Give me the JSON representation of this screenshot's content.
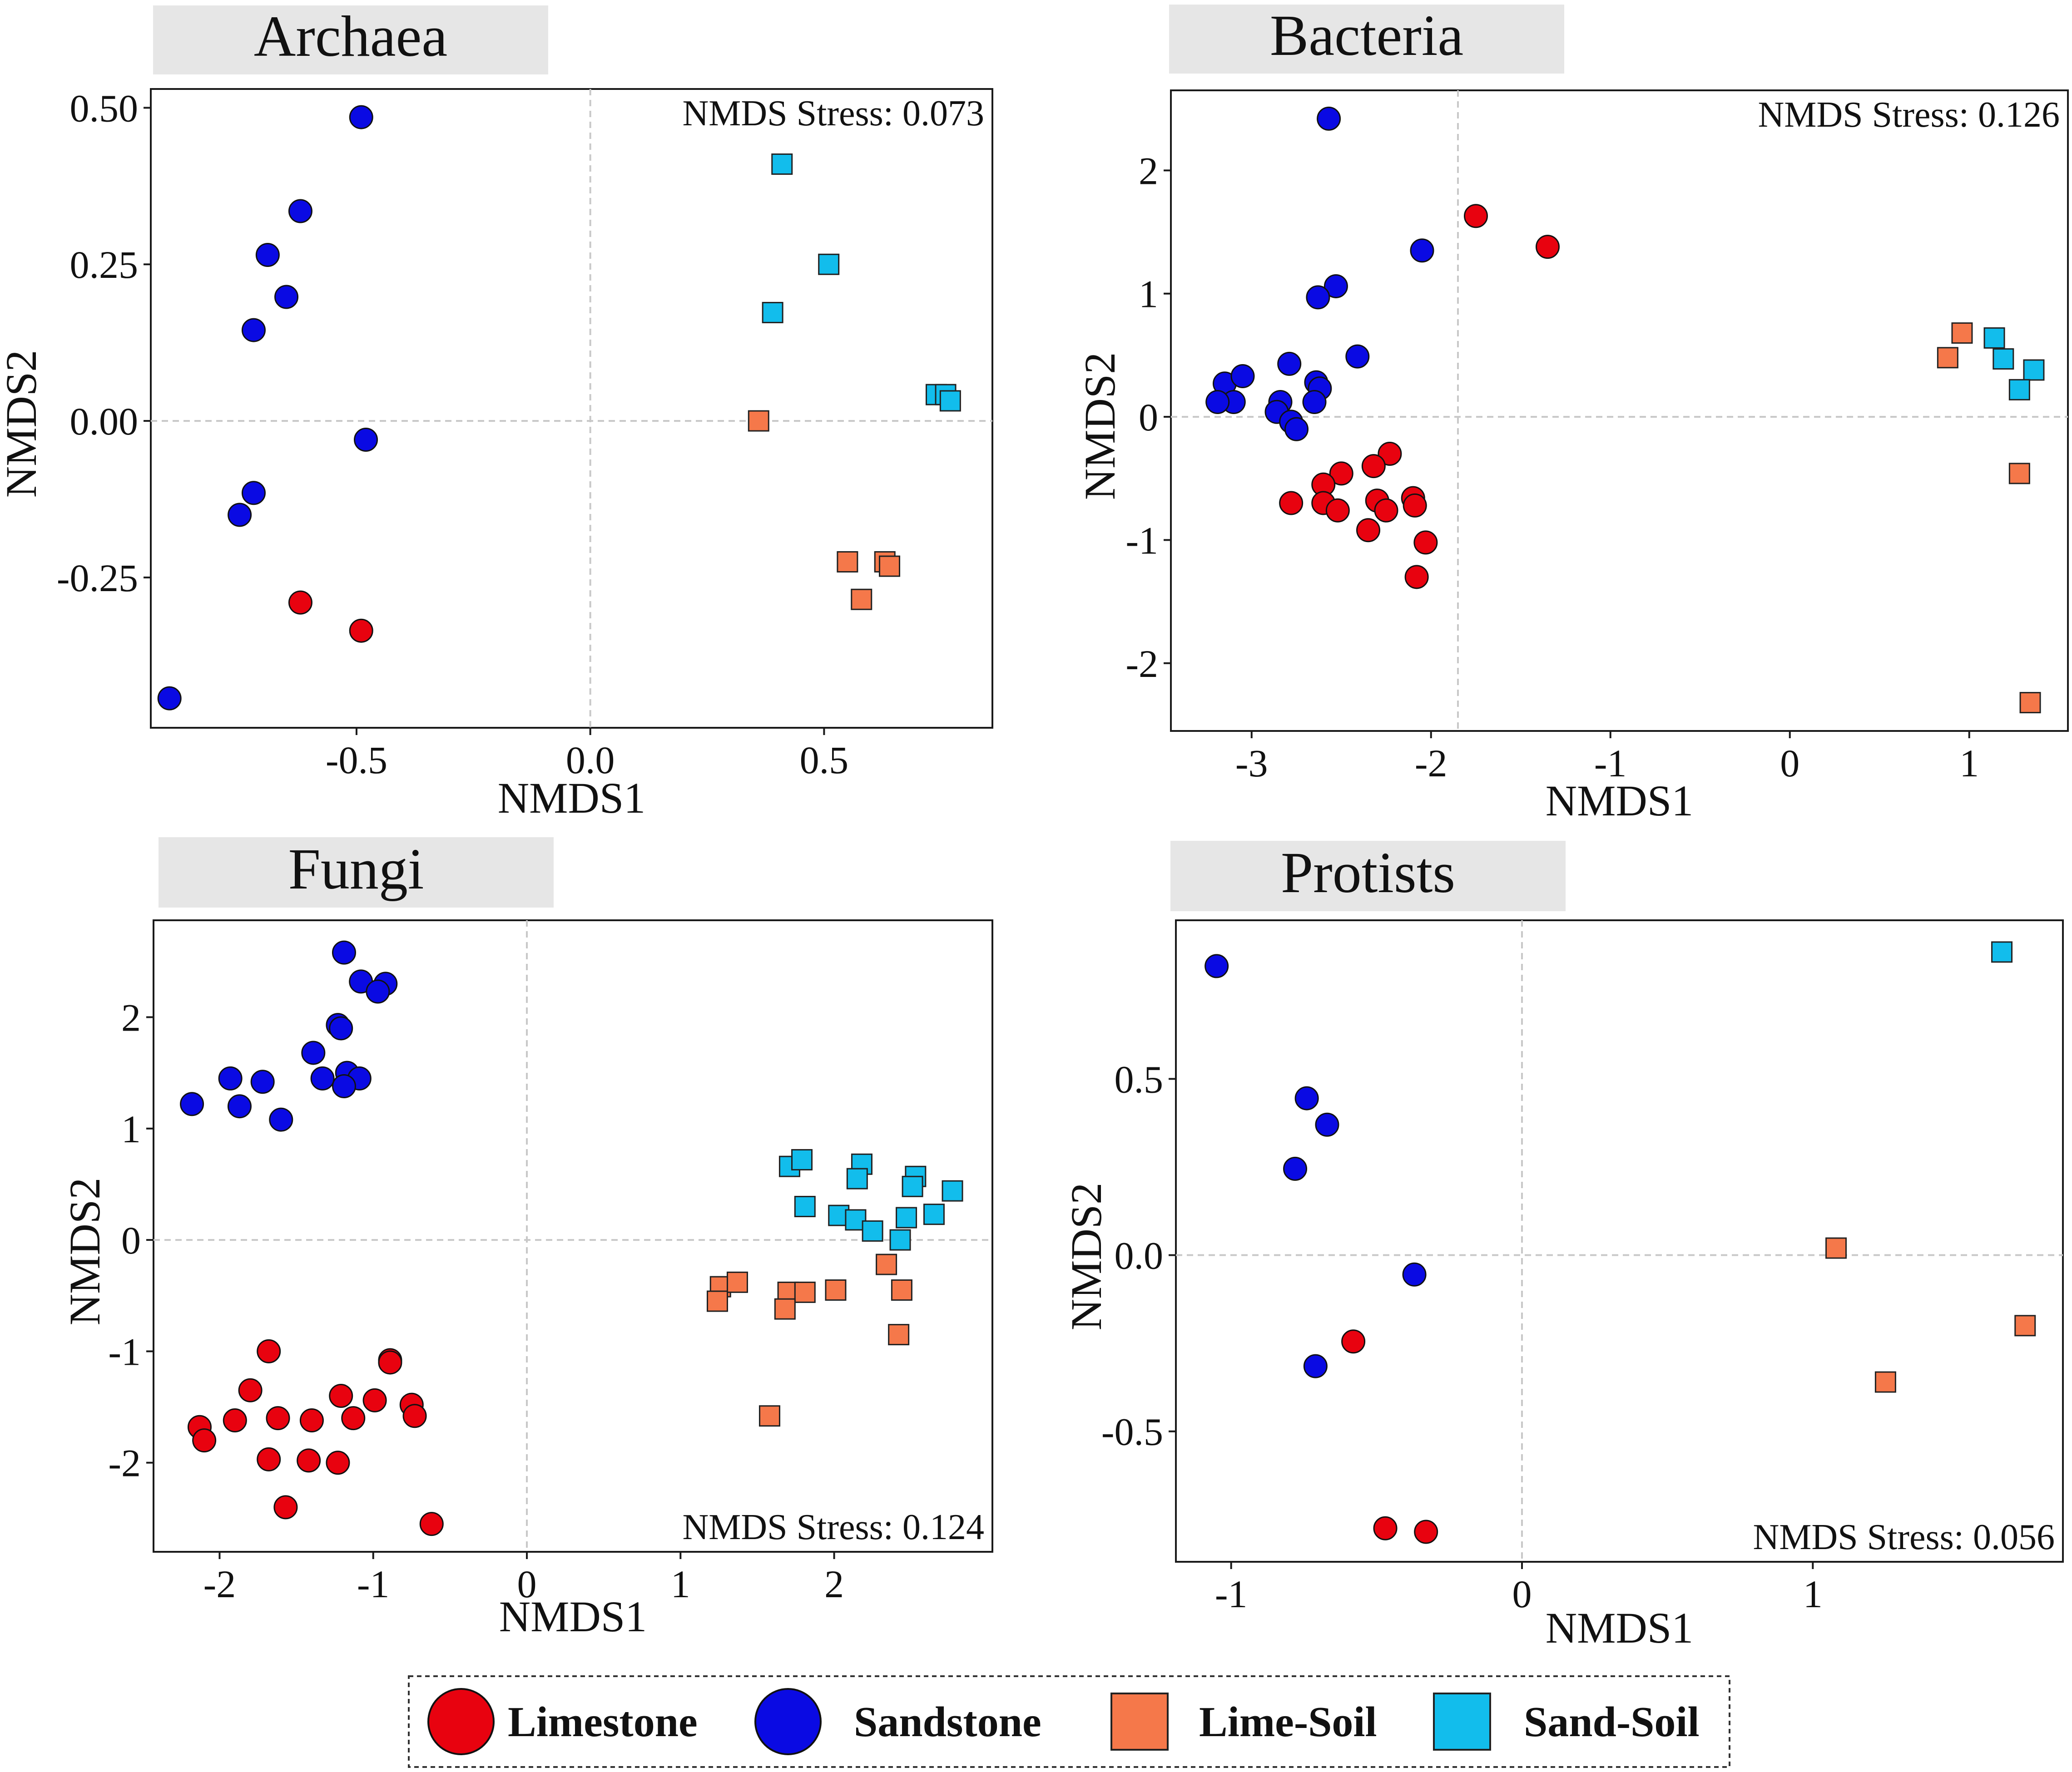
{
  "colors": {
    "Limestone": "#e8020f",
    "Sandstone": "#0a0ae3",
    "Lime-Soil": "#f5784a",
    "Sand-Soil": "#12bdec",
    "title_bg": "#e6e6e6",
    "grid": "#c8c8c8"
  },
  "legend": {
    "items": [
      {
        "label": "Limestone",
        "shape": "circle"
      },
      {
        "label": "Sandstone",
        "shape": "circle"
      },
      {
        "label": "Lime-Soil",
        "shape": "square"
      },
      {
        "label": "Sand-Soil",
        "shape": "square"
      }
    ]
  },
  "chart_data": [
    {
      "type": "scatter",
      "title": "Archaea",
      "xlabel": "NMDS1",
      "ylabel": "NMDS2",
      "stress_label": "NMDS Stress: 0.073",
      "xlim": [
        -0.94,
        0.86
      ],
      "ylim": [
        -0.49,
        0.53
      ],
      "xticks": [
        -0.5,
        0.0,
        0.5
      ],
      "xtick_labels": [
        "-0.5",
        "0.0",
        "0.5"
      ],
      "yticks": [
        -0.25,
        0.0,
        0.25,
        0.5
      ],
      "ytick_labels": [
        "-0.25",
        "0.00",
        "0.25",
        "0.50"
      ],
      "refline_x": 0,
      "refline_y": 0,
      "series": [
        {
          "name": "Limestone",
          "x": [
            -0.62,
            -0.49
          ],
          "y": [
            -0.29,
            -0.335
          ]
        },
        {
          "name": "Sandstone",
          "x": [
            -0.49,
            -0.62,
            -0.69,
            -0.65,
            -0.72,
            -0.48,
            -0.72,
            -0.75,
            -0.9
          ],
          "y": [
            0.485,
            0.335,
            0.265,
            0.198,
            0.145,
            -0.03,
            -0.115,
            -0.15,
            -0.443
          ]
        },
        {
          "name": "Lime-Soil",
          "x": [
            0.36,
            0.55,
            0.63,
            0.64,
            0.58
          ],
          "y": [
            0.0,
            -0.225,
            -0.225,
            -0.232,
            -0.285
          ]
        },
        {
          "name": "Sand-Soil",
          "x": [
            0.41,
            0.51,
            0.39,
            0.74,
            0.76,
            0.77
          ],
          "y": [
            0.41,
            0.25,
            0.173,
            0.042,
            0.042,
            0.032
          ]
        }
      ]
    },
    {
      "type": "scatter",
      "title": "Bacteria",
      "xlabel": "NMDS1",
      "ylabel": "NMDS2",
      "stress_label": "NMDS Stress: 0.126",
      "xlim": [
        -3.45,
        1.55
      ],
      "ylim": [
        -2.55,
        2.65
      ],
      "xticks": [
        -3,
        -2,
        -1,
        0,
        1
      ],
      "xtick_labels": [
        "-3",
        "-2",
        "-1",
        "0",
        "1"
      ],
      "yticks": [
        -2,
        -1,
        0,
        1,
        2
      ],
      "ytick_labels": [
        "-2",
        "-1",
        "0",
        "1",
        "2"
      ],
      "refline_x": -1.85,
      "refline_y": 0,
      "series": [
        {
          "name": "Limestone",
          "x": [
            -1.75,
            -1.35,
            -2.23,
            -2.32,
            -2.5,
            -2.6,
            -2.78,
            -2.6,
            -2.52,
            -2.3,
            -2.25,
            -2.1,
            -2.09,
            -2.35,
            -2.03,
            -2.08
          ],
          "y": [
            1.63,
            1.38,
            -0.3,
            -0.4,
            -0.46,
            -0.55,
            -0.7,
            -0.7,
            -0.76,
            -0.68,
            -0.76,
            -0.66,
            -0.72,
            -0.92,
            -1.02,
            -1.3
          ]
        },
        {
          "name": "Sandstone",
          "x": [
            -2.57,
            -2.05,
            -2.53,
            -2.63,
            -3.15,
            -3.05,
            -3.1,
            -3.19,
            -2.79,
            -2.64,
            -2.62,
            -2.84,
            -2.86,
            -2.41,
            -2.65,
            -2.78,
            -2.75
          ],
          "y": [
            2.42,
            1.35,
            1.06,
            0.97,
            0.27,
            0.33,
            0.12,
            0.12,
            0.43,
            0.28,
            0.23,
            0.12,
            0.04,
            0.49,
            0.12,
            -0.04,
            -0.1
          ]
        },
        {
          "name": "Lime-Soil",
          "x": [
            0.96,
            0.88,
            1.28,
            1.34
          ],
          "y": [
            0.68,
            0.48,
            -0.46,
            -2.32
          ]
        },
        {
          "name": "Sand-Soil",
          "x": [
            1.14,
            1.19,
            1.36,
            1.28
          ],
          "y": [
            0.64,
            0.47,
            0.38,
            0.22
          ]
        }
      ]
    },
    {
      "type": "scatter",
      "title": "Fungi",
      "xlabel": "NMDS1",
      "ylabel": "NMDS2",
      "stress_label": "NMDS Stress: 0.124",
      "xlim": [
        -2.43,
        3.03
      ],
      "ylim": [
        -2.8,
        2.87
      ],
      "xticks": [
        -2,
        -1,
        0,
        1,
        2
      ],
      "xtick_labels": [
        "-2",
        "-1",
        "0",
        "1",
        "2"
      ],
      "yticks": [
        -2,
        -1,
        0,
        1,
        2
      ],
      "ytick_labels": [
        "-2",
        "-1",
        "0",
        "1",
        "2"
      ],
      "refline_x": 0,
      "refline_y": 0,
      "series": [
        {
          "name": "Limestone",
          "x": [
            -1.68,
            -0.89,
            -0.89,
            -1.8,
            -1.21,
            -0.99,
            -2.13,
            -2.1,
            -1.9,
            -1.62,
            -1.4,
            -1.13,
            -0.75,
            -0.73,
            -1.68,
            -1.42,
            -1.23,
            -1.57,
            -0.62
          ],
          "y": [
            -1.0,
            -1.08,
            -1.1,
            -1.35,
            -1.4,
            -1.44,
            -1.68,
            -1.8,
            -1.62,
            -1.6,
            -1.62,
            -1.6,
            -1.48,
            -1.58,
            -1.97,
            -1.98,
            -2.0,
            -2.4,
            -2.55
          ]
        },
        {
          "name": "Sandstone",
          "x": [
            -1.19,
            -1.08,
            -0.92,
            -0.97,
            -1.23,
            -1.21,
            -1.39,
            -1.93,
            -1.72,
            -1.33,
            -1.17,
            -1.09,
            -1.19,
            -2.18,
            -1.87,
            -1.6
          ],
          "y": [
            2.58,
            2.32,
            2.3,
            2.23,
            1.93,
            1.9,
            1.68,
            1.45,
            1.42,
            1.45,
            1.5,
            1.45,
            1.38,
            1.22,
            1.2,
            1.08
          ]
        },
        {
          "name": "Lime-Soil",
          "x": [
            1.26,
            1.37,
            1.24,
            1.7,
            1.81,
            2.01,
            1.68,
            2.34,
            2.44,
            2.42,
            1.58
          ],
          "y": [
            -0.42,
            -0.38,
            -0.55,
            -0.47,
            -0.47,
            -0.45,
            -0.62,
            -0.22,
            -0.45,
            -0.85,
            -1.58
          ]
        },
        {
          "name": "Sand-Soil",
          "x": [
            1.71,
            1.79,
            2.18,
            2.15,
            2.53,
            2.51,
            2.77,
            1.81,
            2.03,
            2.14,
            2.47,
            2.65,
            2.25,
            2.43
          ],
          "y": [
            0.66,
            0.72,
            0.68,
            0.55,
            0.57,
            0.48,
            0.44,
            0.3,
            0.22,
            0.18,
            0.2,
            0.23,
            0.08,
            0.0
          ]
        }
      ]
    },
    {
      "type": "scatter",
      "title": "Protists",
      "xlabel": "NMDS1",
      "ylabel": "NMDS2",
      "stress_label": "NMDS Stress: 0.056",
      "xlim": [
        -1.19,
        1.86
      ],
      "ylim": [
        -0.87,
        0.95
      ],
      "xticks": [
        -1,
        0,
        1
      ],
      "xtick_labels": [
        "-1",
        "0",
        "1"
      ],
      "yticks": [
        -0.5,
        0.0,
        0.5
      ],
      "ytick_labels": [
        "-0.5",
        "0.0",
        "0.5"
      ],
      "refline_x": 0,
      "refline_y": 0,
      "series": [
        {
          "name": "Limestone",
          "x": [
            -0.58,
            -0.47,
            -0.33
          ],
          "y": [
            -0.245,
            -0.775,
            -0.785
          ]
        },
        {
          "name": "Sandstone",
          "x": [
            -1.05,
            -0.74,
            -0.67,
            -0.78,
            -0.37,
            -0.71
          ],
          "y": [
            0.82,
            0.445,
            0.37,
            0.245,
            -0.055,
            -0.315
          ]
        },
        {
          "name": "Lime-Soil",
          "x": [
            1.08,
            1.25,
            1.73
          ],
          "y": [
            0.02,
            -0.36,
            -0.2
          ]
        },
        {
          "name": "Sand-Soil",
          "x": [
            1.65
          ],
          "y": [
            0.86
          ]
        }
      ]
    }
  ]
}
